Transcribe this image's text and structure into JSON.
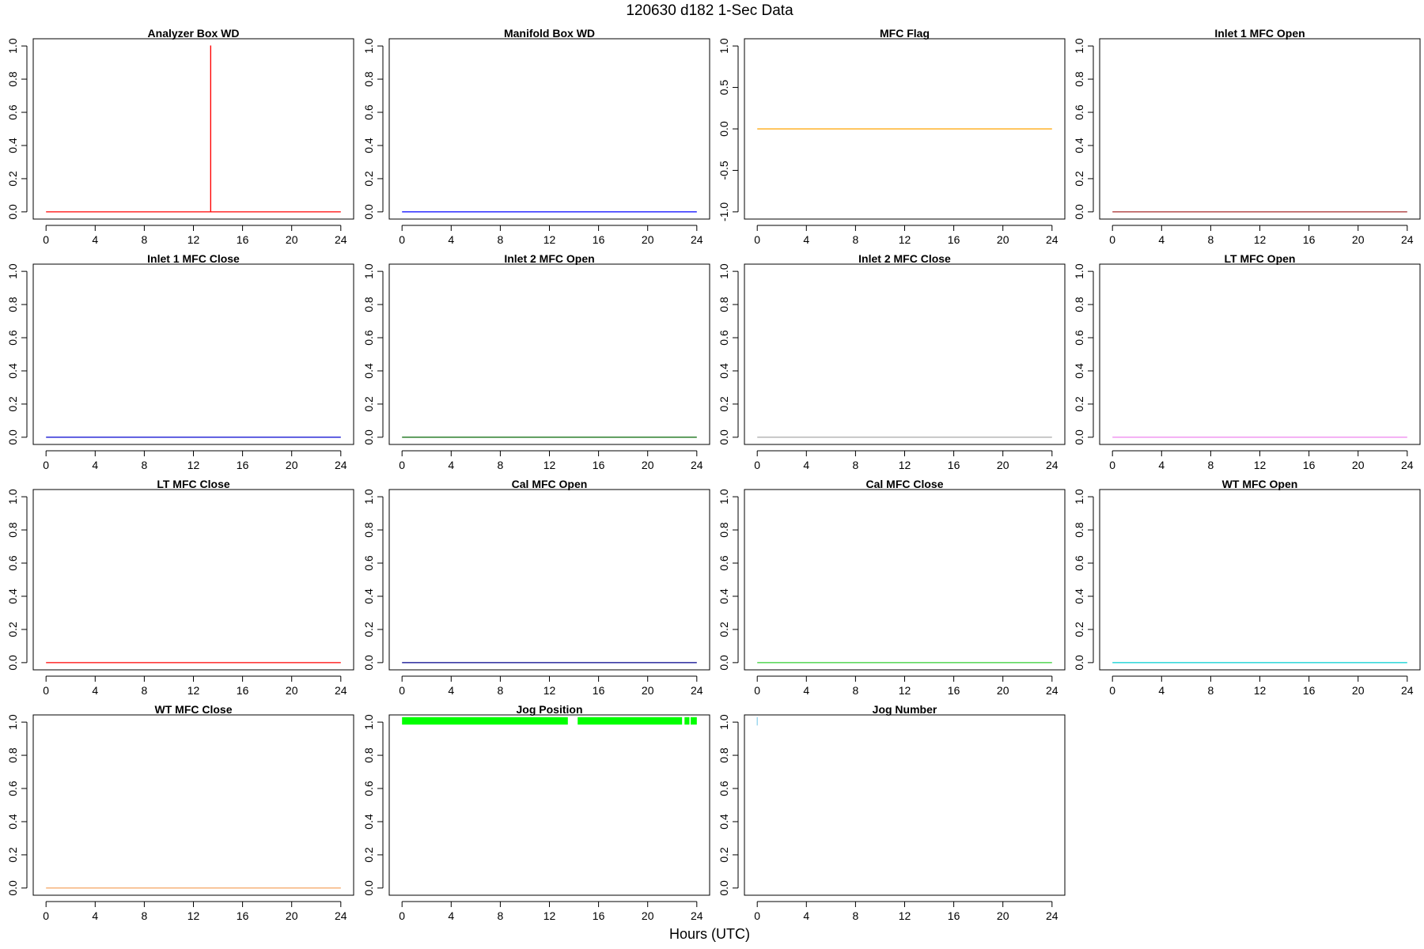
{
  "figure": {
    "title": "120630   d182   1-Sec Data",
    "xlabel": "Hours (UTC)"
  },
  "chart_data": [
    {
      "type": "line",
      "title": "Analyzer Box WD",
      "color": "#ff0000",
      "xlim": [
        0,
        24
      ],
      "ylim": [
        0,
        1
      ],
      "xticks": [
        0,
        4,
        8,
        12,
        16,
        20,
        24
      ],
      "yticks": [
        "0.0",
        "0.2",
        "0.4",
        "0.6",
        "0.8",
        "1.0"
      ],
      "x": [
        0,
        13.4,
        13.4,
        13.41,
        13.41,
        24
      ],
      "y": [
        0,
        0,
        1,
        1,
        0,
        0
      ]
    },
    {
      "type": "line",
      "title": "Manifold Box WD",
      "color": "#0000ff",
      "xlim": [
        0,
        24
      ],
      "ylim": [
        0,
        1
      ],
      "xticks": [
        0,
        4,
        8,
        12,
        16,
        20,
        24
      ],
      "yticks": [
        "0.0",
        "0.2",
        "0.4",
        "0.6",
        "0.8",
        "1.0"
      ],
      "x": [
        0,
        24
      ],
      "y": [
        0,
        0
      ]
    },
    {
      "type": "line",
      "title": "MFC Flag",
      "color": "#ffa500",
      "xlim": [
        0,
        24
      ],
      "ylim": [
        -1,
        1
      ],
      "xticks": [
        0,
        4,
        8,
        12,
        16,
        20,
        24
      ],
      "yticks": [
        "-1.0",
        "-0.5",
        "0.0",
        "0.5",
        "1.0"
      ],
      "x": [
        0,
        24
      ],
      "y": [
        0,
        0
      ]
    },
    {
      "type": "line",
      "title": "Inlet 1 MFC Open",
      "color": "#a52a2a",
      "xlim": [
        0,
        24
      ],
      "ylim": [
        0,
        1
      ],
      "xticks": [
        0,
        4,
        8,
        12,
        16,
        20,
        24
      ],
      "yticks": [
        "0.0",
        "0.2",
        "0.4",
        "0.6",
        "0.8",
        "1.0"
      ],
      "x": [
        0,
        24
      ],
      "y": [
        0,
        0
      ]
    },
    {
      "type": "line",
      "title": "Inlet 1 MFC Close",
      "color": "#0000cd",
      "xlim": [
        0,
        24
      ],
      "ylim": [
        0,
        1
      ],
      "xticks": [
        0,
        4,
        8,
        12,
        16,
        20,
        24
      ],
      "yticks": [
        "0.0",
        "0.2",
        "0.4",
        "0.6",
        "0.8",
        "1.0"
      ],
      "x": [
        0,
        24
      ],
      "y": [
        0,
        0
      ]
    },
    {
      "type": "line",
      "title": "Inlet 2 MFC Open",
      "color": "#006400",
      "xlim": [
        0,
        24
      ],
      "ylim": [
        0,
        1
      ],
      "xticks": [
        0,
        4,
        8,
        12,
        16,
        20,
        24
      ],
      "yticks": [
        "0.0",
        "0.2",
        "0.4",
        "0.6",
        "0.8",
        "1.0"
      ],
      "x": [
        0,
        24
      ],
      "y": [
        0,
        0
      ]
    },
    {
      "type": "line",
      "title": "Inlet 2 MFC Close",
      "color": "#a9a9a9",
      "xlim": [
        0,
        24
      ],
      "ylim": [
        0,
        1
      ],
      "xticks": [
        0,
        4,
        8,
        12,
        16,
        20,
        24
      ],
      "yticks": [
        "0.0",
        "0.2",
        "0.4",
        "0.6",
        "0.8",
        "1.0"
      ],
      "x": [
        0,
        24
      ],
      "y": [
        0,
        0
      ]
    },
    {
      "type": "line",
      "title": "LT MFC Open",
      "color": "#ee82ee",
      "xlim": [
        0,
        24
      ],
      "ylim": [
        0,
        1
      ],
      "xticks": [
        0,
        4,
        8,
        12,
        16,
        20,
        24
      ],
      "yticks": [
        "0.0",
        "0.2",
        "0.4",
        "0.6",
        "0.8",
        "1.0"
      ],
      "x": [
        0,
        24
      ],
      "y": [
        0,
        0
      ]
    },
    {
      "type": "line",
      "title": "LT MFC Close",
      "color": "#ff0000",
      "xlim": [
        0,
        24
      ],
      "ylim": [
        0,
        1
      ],
      "xticks": [
        0,
        4,
        8,
        12,
        16,
        20,
        24
      ],
      "yticks": [
        "0.0",
        "0.2",
        "0.4",
        "0.6",
        "0.8",
        "1.0"
      ],
      "x": [
        0,
        24
      ],
      "y": [
        0,
        0
      ]
    },
    {
      "type": "line",
      "title": "Cal MFC Open",
      "color": "#00008b",
      "xlim": [
        0,
        24
      ],
      "ylim": [
        0,
        1
      ],
      "xticks": [
        0,
        4,
        8,
        12,
        16,
        20,
        24
      ],
      "yticks": [
        "0.0",
        "0.2",
        "0.4",
        "0.6",
        "0.8",
        "1.0"
      ],
      "x": [
        0,
        24
      ],
      "y": [
        0,
        0
      ]
    },
    {
      "type": "line",
      "title": "Cal MFC Close",
      "color": "#32cd32",
      "xlim": [
        0,
        24
      ],
      "ylim": [
        0,
        1
      ],
      "xticks": [
        0,
        4,
        8,
        12,
        16,
        20,
        24
      ],
      "yticks": [
        "0.0",
        "0.2",
        "0.4",
        "0.6",
        "0.8",
        "1.0"
      ],
      "x": [
        0,
        24
      ],
      "y": [
        0,
        0
      ]
    },
    {
      "type": "line",
      "title": "WT MFC Open",
      "color": "#00ced1",
      "xlim": [
        0,
        24
      ],
      "ylim": [
        0,
        1
      ],
      "xticks": [
        0,
        4,
        8,
        12,
        16,
        20,
        24
      ],
      "yticks": [
        "0.0",
        "0.2",
        "0.4",
        "0.6",
        "0.8",
        "1.0"
      ],
      "x": [
        0,
        24
      ],
      "y": [
        0,
        0
      ]
    },
    {
      "type": "line",
      "title": "WT MFC Close",
      "color": "#f4a460",
      "xlim": [
        0,
        24
      ],
      "ylim": [
        0,
        1
      ],
      "xticks": [
        0,
        4,
        8,
        12,
        16,
        20,
        24
      ],
      "yticks": [
        "0.0",
        "0.2",
        "0.4",
        "0.6",
        "0.8",
        "1.0"
      ],
      "x": [
        0,
        24
      ],
      "y": [
        0,
        0
      ]
    },
    {
      "type": "line",
      "title": "Jog Position",
      "color": "#00ff00",
      "xlim": [
        0,
        24
      ],
      "ylim": [
        0,
        1
      ],
      "xticks": [
        0,
        4,
        8,
        12,
        16,
        20,
        24
      ],
      "yticks": [
        "0.0",
        "0.2",
        "0.4",
        "0.6",
        "0.8",
        "1.0"
      ],
      "bands": [
        {
          "x0": 0,
          "x1": 13.5,
          "y0": 0.985,
          "y1": 1.03
        },
        {
          "x0": 14.3,
          "x1": 22.8,
          "y0": 0.985,
          "y1": 1.03
        },
        {
          "x0": 23.0,
          "x1": 23.4,
          "y0": 0.985,
          "y1": 1.03
        },
        {
          "x0": 23.5,
          "x1": 24.0,
          "y0": 0.985,
          "y1": 1.03
        }
      ]
    },
    {
      "type": "line",
      "title": "Jog Number",
      "color": "#87ceeb",
      "xlim": [
        0,
        24
      ],
      "ylim": [
        0,
        1
      ],
      "xticks": [
        0,
        4,
        8,
        12,
        16,
        20,
        24
      ],
      "yticks": [
        "0.0",
        "0.2",
        "0.4",
        "0.6",
        "0.8",
        "1.0"
      ],
      "x": [
        0,
        0
      ],
      "y": [
        0.98,
        1.03
      ]
    }
  ]
}
